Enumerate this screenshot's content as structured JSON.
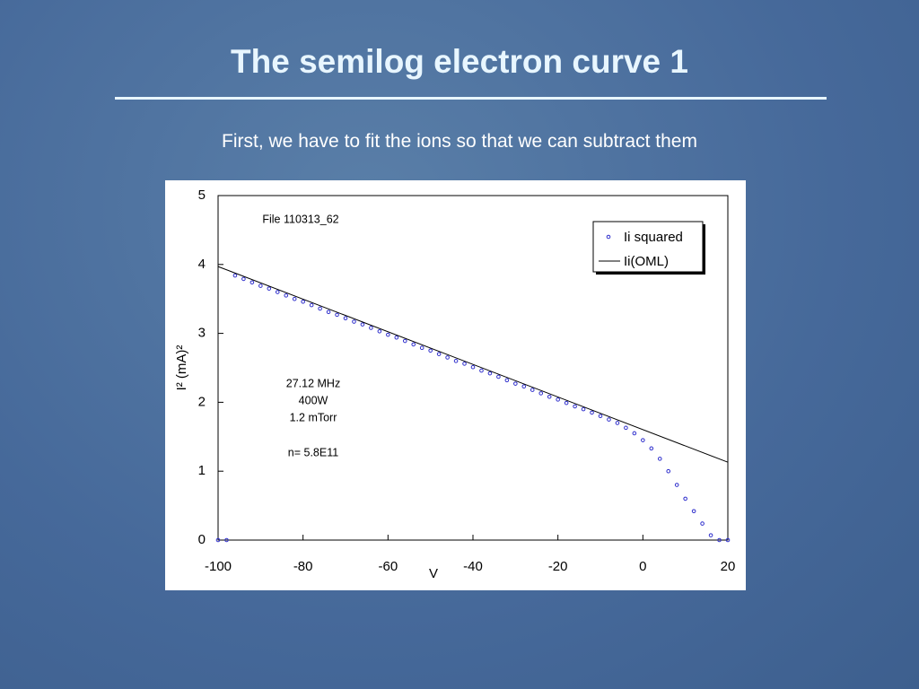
{
  "chart_data": {
    "type": "scatter",
    "title": "The semilog electron curve 1",
    "subtitle": "First, we have to fit the ions so that we can subtract them",
    "xlabel": "V",
    "ylabel": "I² (mA)²",
    "xlim": [
      -100,
      20
    ],
    "ylim": [
      0,
      5
    ],
    "xticks": [
      -100,
      -80,
      -60,
      -40,
      -20,
      0,
      20
    ],
    "yticks": [
      0,
      1,
      2,
      3,
      4,
      5
    ],
    "legend": "upper right",
    "annotations": [
      "File 110313_62",
      "27.12 MHz",
      "400W",
      "1.2 mTorr",
      "n= 5.8E11"
    ],
    "series": [
      {
        "name": "Ii squared",
        "color": "#2e2ecc",
        "style": "marker",
        "x": [
          -100,
          -98,
          -96,
          -94,
          -92,
          -90,
          -88,
          -86,
          -84,
          -82,
          -80,
          -78,
          -76,
          -74,
          -72,
          -70,
          -68,
          -66,
          -64,
          -62,
          -60,
          -58,
          -56,
          -54,
          -52,
          -50,
          -48,
          -46,
          -44,
          -42,
          -40,
          -38,
          -36,
          -34,
          -32,
          -30,
          -28,
          -26,
          -24,
          -22,
          -20,
          -18,
          -16,
          -14,
          -12,
          -10,
          -8,
          -6,
          -4,
          -2,
          0,
          2,
          4,
          6,
          8,
          10,
          12,
          14,
          16,
          18,
          20
        ],
        "values": [
          0,
          0,
          3.84,
          3.79,
          3.74,
          3.69,
          3.65,
          3.6,
          3.55,
          3.5,
          3.46,
          3.41,
          3.36,
          3.31,
          3.27,
          3.22,
          3.17,
          3.13,
          3.08,
          3.03,
          2.98,
          2.94,
          2.89,
          2.84,
          2.79,
          2.75,
          2.7,
          2.65,
          2.6,
          2.56,
          2.51,
          2.46,
          2.42,
          2.37,
          2.32,
          2.27,
          2.23,
          2.18,
          2.13,
          2.08,
          2.04,
          1.99,
          1.94,
          1.9,
          1.85,
          1.8,
          1.75,
          1.7,
          1.63,
          1.55,
          1.45,
          1.33,
          1.18,
          1.0,
          0.8,
          0.6,
          0.42,
          0.24,
          0.07,
          0,
          0
        ]
      },
      {
        "name": "Ii(OML)",
        "color": "#000000",
        "style": "line",
        "x": [
          -100,
          20
        ],
        "values": [
          3.97,
          1.13
        ]
      }
    ]
  }
}
